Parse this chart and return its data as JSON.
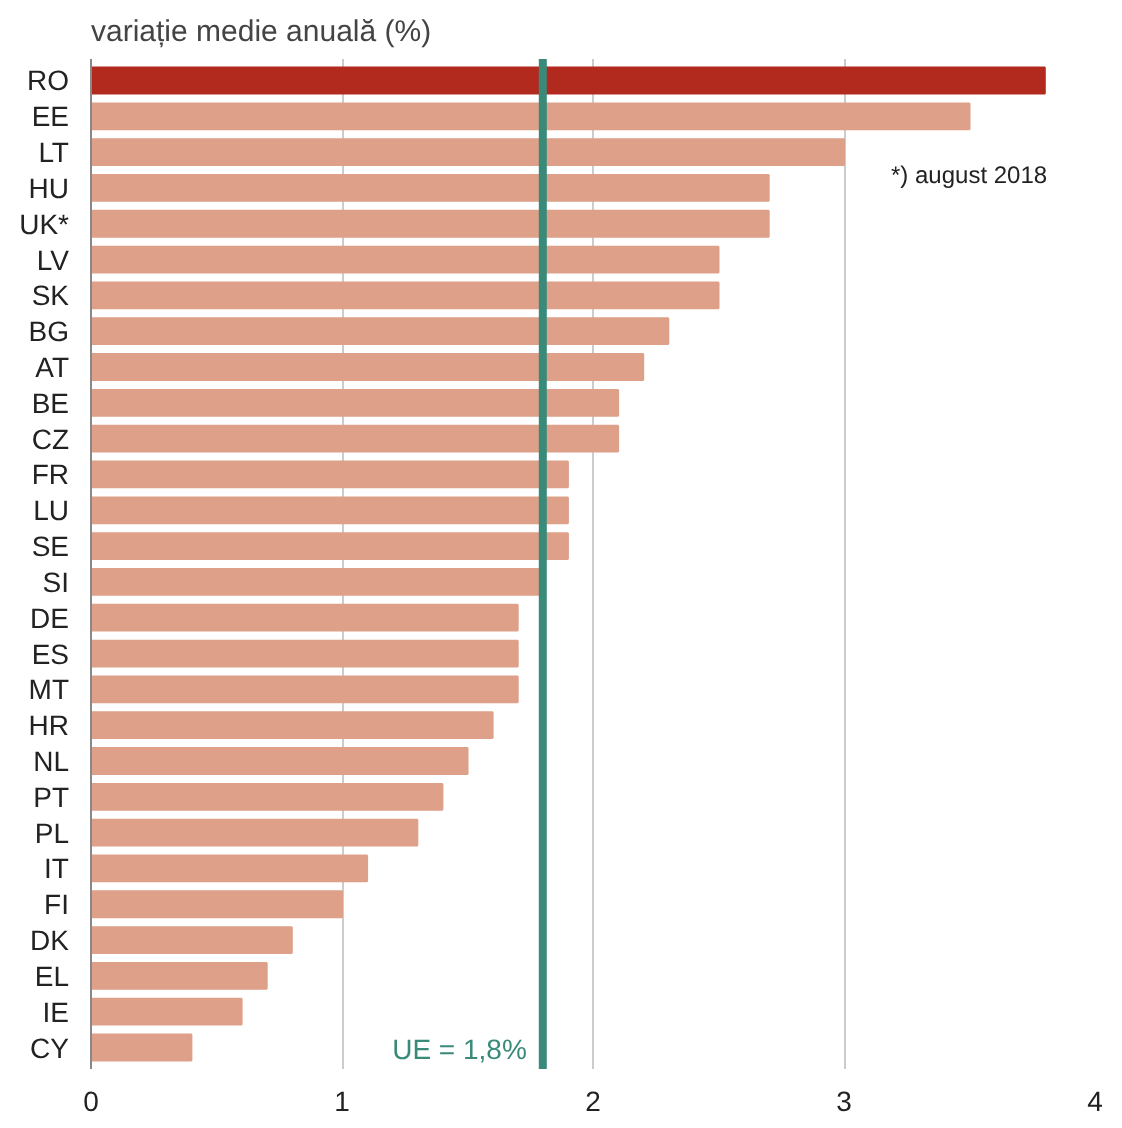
{
  "chart_data": {
    "type": "bar",
    "orientation": "horizontal",
    "title": "variație medie anuală (%)",
    "categories": [
      "RO",
      "EE",
      "LT",
      "HU",
      "UK*",
      "LV",
      "SK",
      "BG",
      "AT",
      "BE",
      "CZ",
      "FR",
      "LU",
      "SE",
      "SI",
      "DE",
      "ES",
      "MT",
      "HR",
      "NL",
      "PT",
      "PL",
      "IT",
      "FI",
      "DK",
      "EL",
      "IE",
      "CY"
    ],
    "values": [
      3.8,
      3.5,
      3.0,
      2.7,
      2.7,
      2.5,
      2.5,
      2.3,
      2.2,
      2.1,
      2.1,
      1.9,
      1.9,
      1.9,
      1.8,
      1.7,
      1.7,
      1.7,
      1.6,
      1.5,
      1.4,
      1.3,
      1.1,
      1.0,
      0.8,
      0.7,
      0.6,
      0.4
    ],
    "colors": [
      "#b22a1e",
      "#dea088",
      "#dea088",
      "#dea088",
      "#dea088",
      "#dea088",
      "#dea088",
      "#dea088",
      "#dea088",
      "#dea088",
      "#dea088",
      "#dea088",
      "#dea088",
      "#dea088",
      "#dea088",
      "#dea088",
      "#dea088",
      "#dea088",
      "#dea088",
      "#dea088",
      "#dea088",
      "#dea088",
      "#dea088",
      "#dea088",
      "#dea088",
      "#dea088",
      "#dea088",
      "#dea088"
    ],
    "xlim": [
      0,
      4
    ],
    "xticks": [
      0,
      1,
      2,
      3,
      4
    ],
    "grid": "x",
    "ref_lines": [
      {
        "axis": "x",
        "value": 1.8,
        "label": "UE = 1,8%",
        "color": "#3a8a7a"
      }
    ],
    "annotations": [
      "*) august 2018"
    ]
  }
}
